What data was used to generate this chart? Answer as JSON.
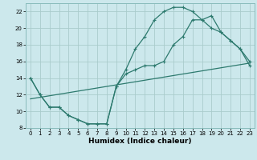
{
  "title": "",
  "xlabel": "Humidex (Indice chaleur)",
  "bg_color": "#cce8ec",
  "grid_color": "#aacccc",
  "line_color": "#2d7a6e",
  "xlim": [
    -0.5,
    23.5
  ],
  "ylim": [
    8,
    23
  ],
  "xticks": [
    0,
    1,
    2,
    3,
    4,
    5,
    6,
    7,
    8,
    9,
    10,
    11,
    12,
    13,
    14,
    15,
    16,
    17,
    18,
    19,
    20,
    21,
    22,
    23
  ],
  "yticks": [
    8,
    10,
    12,
    14,
    16,
    18,
    20,
    22
  ],
  "line1_x": [
    0,
    1,
    2,
    3,
    4,
    5,
    6,
    7,
    8,
    9,
    10,
    11,
    12,
    13,
    14,
    15,
    16,
    17,
    18,
    19,
    20,
    21,
    22,
    23
  ],
  "line1_y": [
    14,
    12,
    10.5,
    10.5,
    9.5,
    9,
    8.5,
    8.5,
    8.5,
    13,
    15,
    17.5,
    19,
    21,
    22,
    22.5,
    22.5,
    22,
    21,
    20,
    19.5,
    18.5,
    17.5,
    16
  ],
  "line2_x": [
    0,
    1,
    2,
    3,
    4,
    5,
    6,
    7,
    8,
    9,
    10,
    11,
    12,
    13,
    14,
    15,
    16,
    17,
    18,
    19,
    20,
    21,
    22,
    23
  ],
  "line2_y": [
    14,
    12,
    10.5,
    10.5,
    9.5,
    9,
    8.5,
    8.5,
    8.5,
    13,
    14.5,
    15,
    15.5,
    15.5,
    16,
    18,
    19,
    21,
    21,
    21.5,
    19.5,
    18.5,
    17.5,
    15.5
  ],
  "line3_x": [
    0,
    23
  ],
  "line3_y": [
    11.5,
    15.8
  ],
  "marker_size": 2.5,
  "lw": 0.9,
  "xlabel_fontsize": 6.5,
  "tick_fontsize": 5.0
}
